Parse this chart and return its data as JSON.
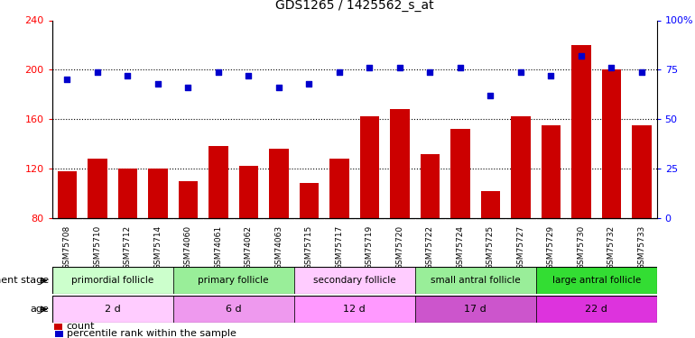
{
  "title": "GDS1265 / 1425562_s_at",
  "samples": [
    "GSM75708",
    "GSM75710",
    "GSM75712",
    "GSM75714",
    "GSM74060",
    "GSM74061",
    "GSM74062",
    "GSM74063",
    "GSM75715",
    "GSM75717",
    "GSM75719",
    "GSM75720",
    "GSM75722",
    "GSM75724",
    "GSM75725",
    "GSM75727",
    "GSM75729",
    "GSM75730",
    "GSM75732",
    "GSM75733"
  ],
  "counts": [
    118,
    128,
    120,
    120,
    110,
    138,
    122,
    136,
    108,
    128,
    162,
    168,
    132,
    152,
    102,
    162,
    155,
    220,
    200,
    155
  ],
  "percentile": [
    70,
    74,
    72,
    68,
    66,
    74,
    72,
    66,
    68,
    74,
    76,
    76,
    74,
    76,
    62,
    74,
    72,
    82,
    76,
    74
  ],
  "bar_color": "#cc0000",
  "dot_color": "#0000cc",
  "left_ylim": [
    80,
    240
  ],
  "left_yticks": [
    80,
    120,
    160,
    200,
    240
  ],
  "right_ylim": [
    0,
    100
  ],
  "right_yticks": [
    0,
    25,
    50,
    75,
    100
  ],
  "right_yticklabels": [
    "0",
    "25",
    "50",
    "75",
    "100%"
  ],
  "groups": [
    {
      "label": "primordial follicle",
      "start": 0,
      "end": 4,
      "color": "#ccffcc"
    },
    {
      "label": "primary follicle",
      "start": 4,
      "end": 8,
      "color": "#99ee99"
    },
    {
      "label": "secondary follicle",
      "start": 8,
      "end": 12,
      "color": "#ffccff"
    },
    {
      "label": "small antral follicle",
      "start": 12,
      "end": 16,
      "color": "#99ee99"
    },
    {
      "label": "large antral follicle",
      "start": 16,
      "end": 20,
      "color": "#33dd33"
    }
  ],
  "ages": [
    {
      "label": "2 d",
      "start": 0,
      "end": 4,
      "color": "#ffccff"
    },
    {
      "label": "6 d",
      "start": 4,
      "end": 8,
      "color": "#ee99ee"
    },
    {
      "label": "12 d",
      "start": 8,
      "end": 12,
      "color": "#ff88ff"
    },
    {
      "label": "17 d",
      "start": 12,
      "end": 16,
      "color": "#cc55cc"
    },
    {
      "label": "22 d",
      "start": 16,
      "end": 20,
      "color": "#dd44dd"
    }
  ],
  "dev_stage_label": "development stage",
  "age_label": "age",
  "legend_count_label": "count",
  "legend_pct_label": "percentile rank within the sample",
  "xticklabel_bg": "#cccccc"
}
